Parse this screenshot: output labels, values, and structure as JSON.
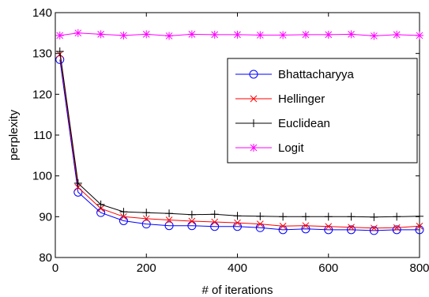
{
  "chart_data": {
    "type": "line",
    "title": "",
    "xlabel": "# of iterations",
    "ylabel": "perplexity",
    "xlim": [
      0,
      800
    ],
    "ylim": [
      80,
      140
    ],
    "xticks": [
      0,
      200,
      400,
      600,
      800
    ],
    "yticks": [
      80,
      90,
      100,
      110,
      120,
      130,
      140
    ],
    "grid": false,
    "legend_position": "top-right",
    "x": [
      10,
      50,
      100,
      150,
      200,
      250,
      300,
      350,
      400,
      450,
      500,
      550,
      600,
      650,
      700,
      750,
      800
    ],
    "series": [
      {
        "name": "Bhattacharyya",
        "color": "#0000ff",
        "marker": "circle",
        "values": [
          128.5,
          96.0,
          91.0,
          89.0,
          88.2,
          87.8,
          87.8,
          87.6,
          87.6,
          87.3,
          86.8,
          87.0,
          86.8,
          86.8,
          86.6,
          86.8,
          86.8
        ]
      },
      {
        "name": "Hellinger",
        "color": "#ff0000",
        "marker": "x",
        "values": [
          129.8,
          97.2,
          92.0,
          90.0,
          89.5,
          89.2,
          88.9,
          88.7,
          88.5,
          88.2,
          87.7,
          87.8,
          87.6,
          87.4,
          87.2,
          87.3,
          87.7
        ]
      },
      {
        "name": "Euclidean",
        "color": "#000000",
        "marker": "plus",
        "values": [
          130.5,
          98.2,
          93.0,
          91.2,
          91.0,
          90.8,
          90.5,
          90.6,
          90.2,
          90.1,
          90.0,
          90.0,
          90.0,
          90.0,
          89.9,
          90.0,
          90.1
        ]
      },
      {
        "name": "Logit",
        "color": "#ff00ff",
        "marker": "star",
        "values": [
          134.4,
          135.0,
          134.7,
          134.4,
          134.7,
          134.3,
          134.7,
          134.6,
          134.6,
          134.5,
          134.5,
          134.6,
          134.6,
          134.7,
          134.3,
          134.6,
          134.4
        ]
      }
    ]
  }
}
